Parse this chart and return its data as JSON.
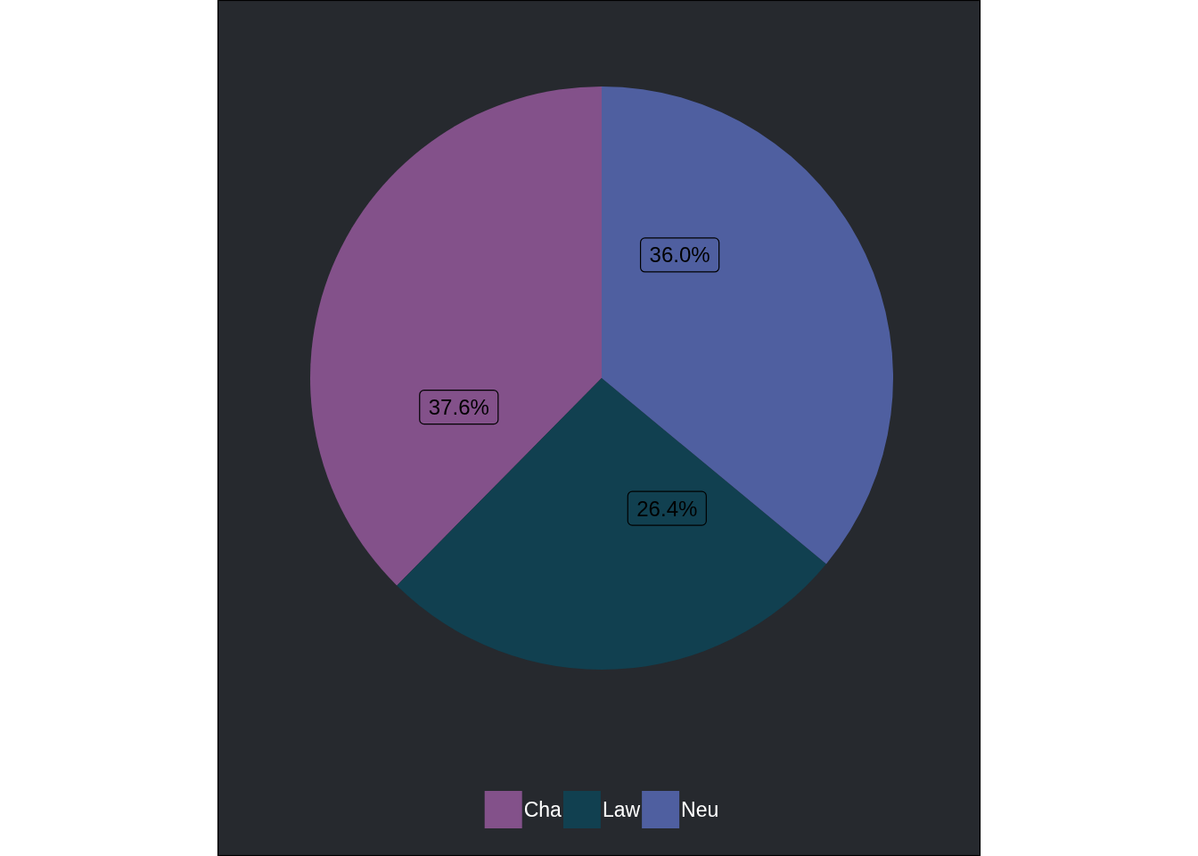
{
  "chart_data": {
    "type": "pie",
    "categories": [
      "Cha",
      "Law",
      "Neu"
    ],
    "values": [
      37.6,
      26.4,
      36.0
    ],
    "colors": [
      "#83518a",
      "#114050",
      "#4f5fa0"
    ],
    "value_labels": [
      "37.6%",
      "26.4%",
      "36.0%"
    ],
    "legend": "bottom"
  }
}
